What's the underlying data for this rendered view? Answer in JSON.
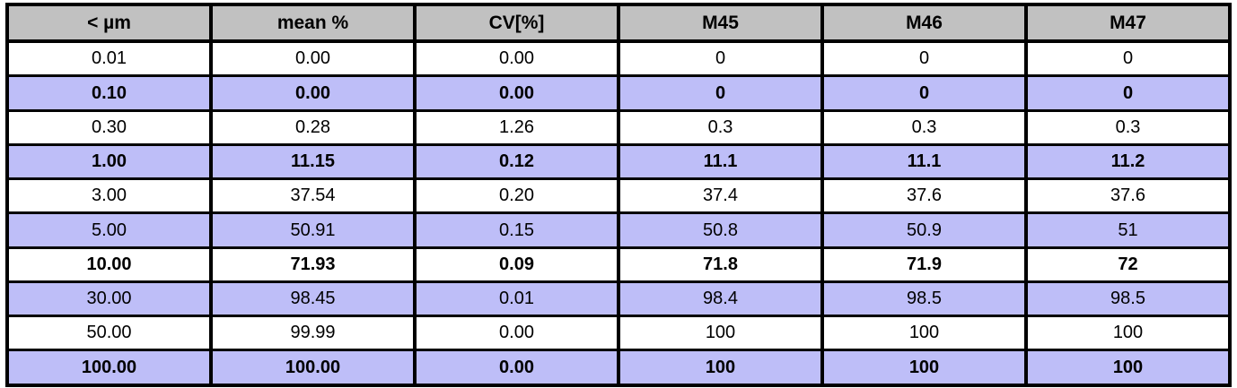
{
  "colors": {
    "header_bg": "#C1C1C1",
    "row_shaded_bg": "#BEBEF8",
    "row_plain_bg": "#FFFFFF",
    "border": "#000000",
    "text": "#000000"
  },
  "chart_data": {
    "type": "table",
    "title": "",
    "columns": [
      "< µm",
      "mean %",
      "CV[%]",
      "M45",
      "M46",
      "M47"
    ],
    "rows": [
      {
        "values": [
          "0.01",
          "0.00",
          "0.00",
          "0",
          "0",
          "0"
        ],
        "bold": false
      },
      {
        "values": [
          "0.10",
          "0.00",
          "0.00",
          "0",
          "0",
          "0"
        ],
        "bold": true
      },
      {
        "values": [
          "0.30",
          "0.28",
          "1.26",
          "0.3",
          "0.3",
          "0.3"
        ],
        "bold": false
      },
      {
        "values": [
          "1.00",
          "11.15",
          "0.12",
          "11.1",
          "11.1",
          "11.2"
        ],
        "bold": true
      },
      {
        "values": [
          "3.00",
          "37.54",
          "0.20",
          "37.4",
          "37.6",
          "37.6"
        ],
        "bold": false
      },
      {
        "values": [
          "5.00",
          "50.91",
          "0.15",
          "50.8",
          "50.9",
          "51"
        ],
        "bold": false
      },
      {
        "values": [
          "10.00",
          "71.93",
          "0.09",
          "71.8",
          "71.9",
          "72"
        ],
        "bold": true
      },
      {
        "values": [
          "30.00",
          "98.45",
          "0.01",
          "98.4",
          "98.5",
          "98.5"
        ],
        "bold": false
      },
      {
        "values": [
          "50.00",
          "99.99",
          "0.00",
          "100",
          "100",
          "100"
        ],
        "bold": false
      },
      {
        "values": [
          "100.00",
          "100.00",
          "0.00",
          "100",
          "100",
          "100"
        ],
        "bold": true
      }
    ]
  }
}
